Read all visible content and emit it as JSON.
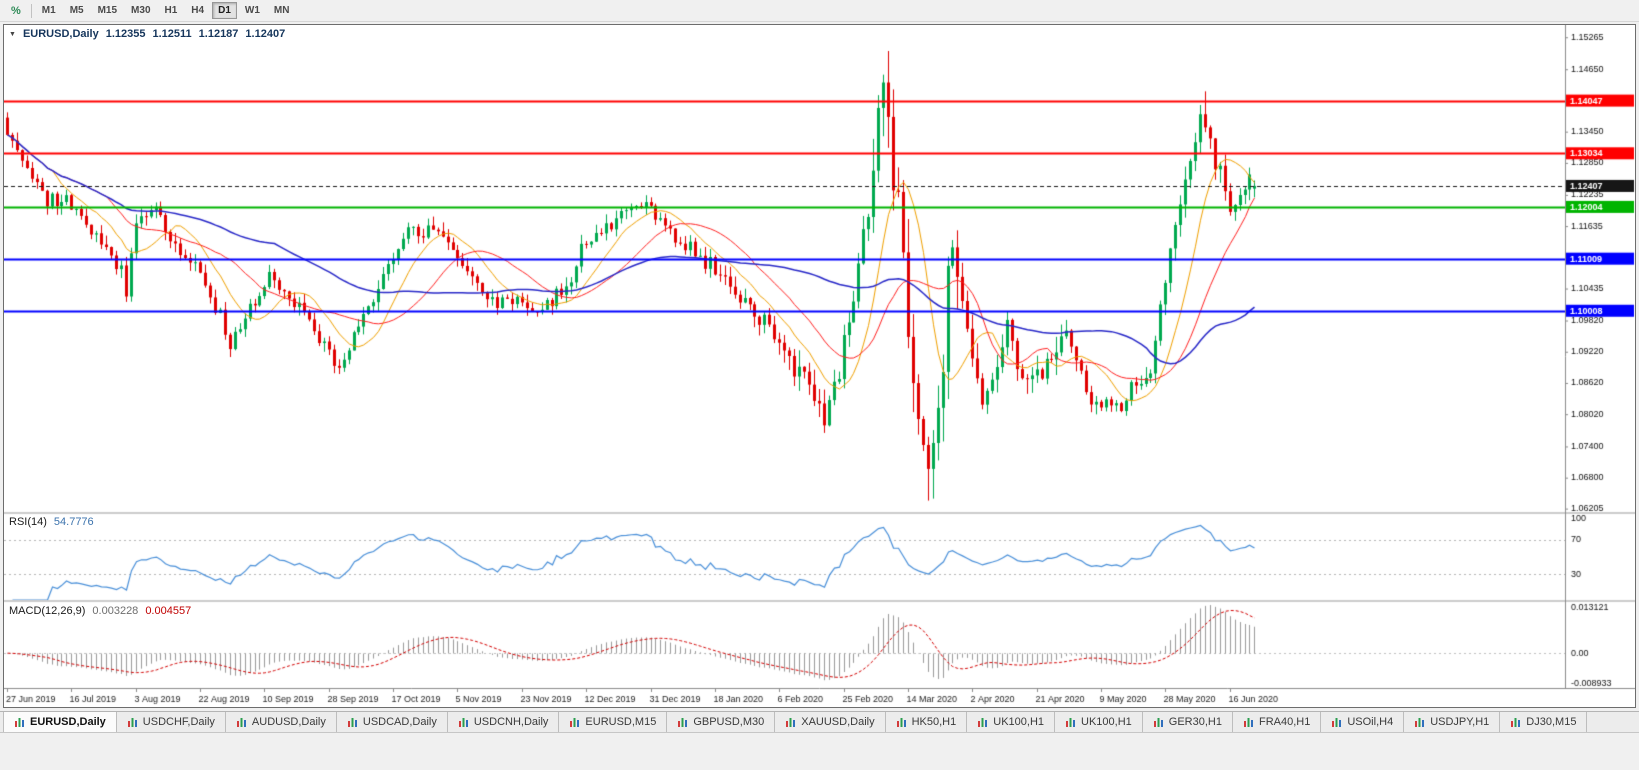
{
  "toolbar": {
    "percent_label": "%",
    "timeframes": [
      {
        "label": "M1",
        "active": false
      },
      {
        "label": "M5",
        "active": false
      },
      {
        "label": "M15",
        "active": false
      },
      {
        "label": "M30",
        "active": false
      },
      {
        "label": "H1",
        "active": false
      },
      {
        "label": "H4",
        "active": false
      },
      {
        "label": "D1",
        "active": true
      },
      {
        "label": "W1",
        "active": false
      },
      {
        "label": "MN",
        "active": false
      }
    ]
  },
  "chart_header": {
    "symbol": "EURUSD,Daily",
    "open": "1.12355",
    "high": "1.12511",
    "low": "1.12187",
    "close": "1.12407",
    "dropdown_glyph": "▼"
  },
  "rsi_panel": {
    "name": "RSI(14)",
    "value": "54.7776",
    "levels": [
      100,
      70,
      30
    ],
    "line_color": "#4a90d9"
  },
  "macd_panel": {
    "name": "MACD(12,26,9)",
    "main_value": "0.003228",
    "signal_value": "0.004557",
    "axis_top": "0.013121",
    "axis_zero": "0.00",
    "axis_bottom": "-0.008933",
    "hist_color": "#9a9a9a",
    "signal_color": "#d40000"
  },
  "price_axis_ticks": [
    "1.15265",
    "1.14650",
    "1.13450",
    "1.12850",
    "1.12235",
    "1.11635",
    "1.10435",
    "1.09820",
    "1.09220",
    "1.08620",
    "1.08020",
    "1.07400",
    "1.06800",
    "1.06205"
  ],
  "hlines": [
    {
      "price": 1.14047,
      "label": "1.14047",
      "color": "#ff0000",
      "lw": 2,
      "type": "resistance"
    },
    {
      "price": 1.13034,
      "label": "1.13034",
      "color": "#ff0000",
      "lw": 2,
      "type": "resistance"
    },
    {
      "price": 1.12407,
      "label": "1.12407",
      "color": "#161616",
      "lw": 1,
      "type": "current"
    },
    {
      "price": 1.12004,
      "label": "1.12004",
      "color": "#00b400",
      "lw": 2,
      "type": "support"
    },
    {
      "price": 1.11009,
      "label": "1.11009",
      "color": "#0000ff",
      "lw": 2,
      "type": "support"
    },
    {
      "price": 1.10008,
      "label": "1.10008",
      "color": "#0000ff",
      "lw": 2,
      "type": "support"
    }
  ],
  "date_axis": [
    "27 Jun 2019",
    "16 Jul 2019",
    "3 Aug 2019",
    "22 Aug 2019",
    "10 Sep 2019",
    "28 Sep 2019",
    "17 Oct 2019",
    "5 Nov 2019",
    "23 Nov 2019",
    "12 Dec 2019",
    "31 Dec 2019",
    "18 Jan 2020",
    "6 Feb 2020",
    "25 Feb 2020",
    "14 Mar 2020",
    "2 Apr 2020",
    "21 Apr 2020",
    "9 May 2020",
    "28 May 2020",
    "16 Jun 2020"
  ],
  "chart_data": {
    "type": "candlestick",
    "symbol": "EURUSD",
    "timeframe": "Daily",
    "visible_range": {
      "price_min": 1.0614,
      "price_max": 1.1546,
      "bars": 253
    },
    "candle_colors": {
      "up": "#00a94f",
      "down": "#e00000"
    },
    "price_path_anchors": [
      [
        0,
        1.1372
      ],
      [
        4,
        1.1285
      ],
      [
        9,
        1.1215
      ],
      [
        13,
        1.1215
      ],
      [
        19,
        1.114
      ],
      [
        24,
        1.108
      ],
      [
        25,
        1.104
      ],
      [
        27,
        1.118
      ],
      [
        31,
        1.12
      ],
      [
        36,
        1.11
      ],
      [
        39,
        1.108
      ],
      [
        44,
        1.099
      ],
      [
        46,
        1.0935
      ],
      [
        54,
        1.107
      ],
      [
        59,
        1.1015
      ],
      [
        65,
        1.094
      ],
      [
        67,
        1.0885
      ],
      [
        74,
        1.1
      ],
      [
        81,
        1.115
      ],
      [
        89,
        1.1152
      ],
      [
        98,
        1.102
      ],
      [
        110,
        1.101
      ],
      [
        115,
        1.106
      ],
      [
        117,
        1.1125
      ],
      [
        130,
        1.1212
      ],
      [
        134,
        1.116
      ],
      [
        143,
        1.109
      ],
      [
        150,
        1.101
      ],
      [
        156,
        1.096
      ],
      [
        166,
        1.0792
      ],
      [
        169,
        1.088
      ],
      [
        174,
        1.1135
      ],
      [
        178,
        1.1448
      ],
      [
        181,
        1.1185
      ],
      [
        186,
        1.07
      ],
      [
        188,
        1.073
      ],
      [
        192,
        1.114
      ],
      [
        198,
        1.08
      ],
      [
        203,
        1.096
      ],
      [
        205,
        1.09
      ],
      [
        208,
        1.0858
      ],
      [
        215,
        1.096
      ],
      [
        220,
        1.0834
      ],
      [
        225,
        1.0812
      ],
      [
        232,
        1.0895
      ],
      [
        236,
        1.111
      ],
      [
        239,
        1.125
      ],
      [
        242,
        1.139
      ],
      [
        246,
        1.126
      ],
      [
        249,
        1.1185
      ],
      [
        252,
        1.1241
      ]
    ],
    "extreme_bars": [
      {
        "bar": 178,
        "kind": "high",
        "price": 1.14933
      },
      {
        "bar": 186,
        "kind": "low",
        "price": 1.06359
      },
      {
        "bar": 242,
        "kind": "high",
        "price": 1.14225
      }
    ],
    "moving_averages": [
      {
        "name": "SMA",
        "period": 10,
        "color": "#f0a000",
        "width": 1
      },
      {
        "name": "SMA",
        "period": 21,
        "color": "#ff2020",
        "width": 1
      },
      {
        "name": "SMA",
        "period": 55,
        "color": "#2828c8",
        "width": 1.5
      }
    ],
    "indicators": [
      {
        "name": "RSI",
        "period": 14,
        "current": 54.7776
      },
      {
        "name": "MACD",
        "fast": 12,
        "slow": 26,
        "signal": 9,
        "current_main": 0.003228,
        "current_signal": 0.004557
      }
    ]
  },
  "tabs": [
    {
      "label": "EURUSD,Daily",
      "active": true
    },
    {
      "label": "USDCHF,Daily",
      "active": false
    },
    {
      "label": "AUDUSD,Daily",
      "active": false
    },
    {
      "label": "USDCAD,Daily",
      "active": false
    },
    {
      "label": "USDCNH,Daily",
      "active": false
    },
    {
      "label": "EURUSD,M15",
      "active": false
    },
    {
      "label": "GBPUSD,M30",
      "active": false
    },
    {
      "label": "XAUUSD,Daily",
      "active": false
    },
    {
      "label": "HK50,H1",
      "active": false
    },
    {
      "label": "UK100,H1",
      "active": false
    },
    {
      "label": "UK100,H1",
      "active": false
    },
    {
      "label": "GER30,H1",
      "active": false
    },
    {
      "label": "FRA40,H1",
      "active": false
    },
    {
      "label": "USOil,H4",
      "active": false
    },
    {
      "label": "USDJPY,H1",
      "active": false
    },
    {
      "label": "DJ30,M15",
      "active": false
    }
  ]
}
